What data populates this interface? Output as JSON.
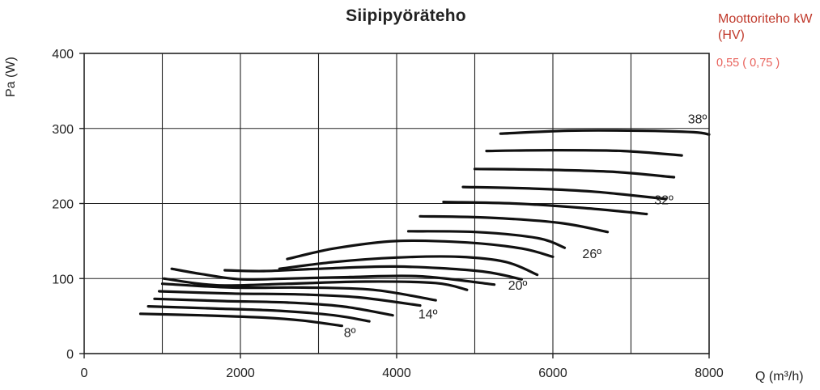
{
  "chart_data": {
    "type": "line",
    "title": "Siipipyöräteho",
    "xlabel": "Q (m³/h)",
    "ylabel": "Pa (W)",
    "xlim": [
      0,
      8000
    ],
    "ylim": [
      0,
      400
    ],
    "x_ticks": [
      0,
      2000,
      4000,
      6000,
      8000
    ],
    "y_ticks": [
      0,
      100,
      200,
      300,
      400
    ],
    "grid": true,
    "legend": {
      "title": "Moottoriteho kW (HV)",
      "entry": "0,55 ( 0,75 )",
      "color": "#e8605a",
      "title_color": "#c0392b",
      "placement": "top-right"
    },
    "angle_labels": [
      {
        "text": "8º",
        "x": 3400,
        "y": 22
      },
      {
        "text": "14º",
        "x": 4400,
        "y": 47
      },
      {
        "text": "20º",
        "x": 5550,
        "y": 85
      },
      {
        "text": "26º",
        "x": 6500,
        "y": 127
      },
      {
        "text": "32º",
        "x": 7420,
        "y": 199
      },
      {
        "text": "38º",
        "x": 7850,
        "y": 307
      }
    ],
    "series": [
      {
        "values": [
          [
            720,
            53
          ],
          [
            1500,
            51
          ],
          [
            2300,
            48
          ],
          [
            2800,
            44
          ],
          [
            3300,
            37
          ]
        ]
      },
      {
        "values": [
          [
            820,
            63
          ],
          [
            1700,
            60
          ],
          [
            2500,
            57
          ],
          [
            3200,
            51
          ],
          [
            3650,
            43
          ]
        ]
      },
      {
        "values": [
          [
            900,
            73
          ],
          [
            1800,
            70
          ],
          [
            2600,
            68
          ],
          [
            3300,
            63
          ],
          [
            3950,
            51
          ]
        ]
      },
      {
        "values": [
          [
            960,
            83
          ],
          [
            1900,
            80
          ],
          [
            2700,
            79
          ],
          [
            3500,
            75
          ],
          [
            4300,
            64
          ]
        ]
      },
      {
        "values": [
          [
            1000,
            93
          ],
          [
            1900,
            88
          ],
          [
            2800,
            88
          ],
          [
            3700,
            85
          ],
          [
            4500,
            71
          ]
        ]
      },
      {
        "values": [
          [
            1020,
            100
          ],
          [
            1700,
            91
          ],
          [
            2600,
            93
          ],
          [
            3600,
            96
          ],
          [
            4500,
            94
          ],
          [
            4900,
            85
          ]
        ]
      },
      {
        "values": [
          [
            1120,
            113
          ],
          [
            1500,
            106
          ],
          [
            2000,
            99
          ],
          [
            2600,
            100
          ],
          [
            3400,
            102
          ],
          [
            4300,
            103
          ],
          [
            5250,
            92
          ]
        ]
      },
      {
        "values": [
          [
            1800,
            111
          ],
          [
            2300,
            110
          ],
          [
            3000,
            113
          ],
          [
            4000,
            116
          ],
          [
            5050,
            110
          ],
          [
            5600,
            99
          ]
        ]
      },
      {
        "values": [
          [
            2500,
            113
          ],
          [
            3200,
            122
          ],
          [
            4000,
            128
          ],
          [
            4800,
            129
          ],
          [
            5400,
            122
          ],
          [
            5800,
            105
          ]
        ]
      },
      {
        "values": [
          [
            2600,
            126
          ],
          [
            3200,
            140
          ],
          [
            4000,
            150
          ],
          [
            4900,
            148
          ],
          [
            5600,
            140
          ],
          [
            6000,
            129
          ]
        ]
      },
      {
        "values": [
          [
            4150,
            163
          ],
          [
            5000,
            162
          ],
          [
            5800,
            154
          ],
          [
            6150,
            141
          ]
        ]
      },
      {
        "values": [
          [
            4300,
            183
          ],
          [
            5200,
            181
          ],
          [
            6100,
            174
          ],
          [
            6700,
            162
          ]
        ]
      },
      {
        "values": [
          [
            4600,
            202
          ],
          [
            5500,
            200
          ],
          [
            6400,
            194
          ],
          [
            7200,
            186
          ]
        ]
      },
      {
        "values": [
          [
            4850,
            222
          ],
          [
            5700,
            220
          ],
          [
            6500,
            216
          ],
          [
            7450,
            206
          ]
        ]
      },
      {
        "values": [
          [
            5000,
            246
          ],
          [
            5900,
            245
          ],
          [
            6800,
            242
          ],
          [
            7550,
            235
          ]
        ]
      },
      {
        "values": [
          [
            5150,
            270
          ],
          [
            6000,
            271
          ],
          [
            6900,
            270
          ],
          [
            7650,
            264
          ]
        ]
      },
      {
        "values": [
          [
            5330,
            293
          ],
          [
            6200,
            297
          ],
          [
            7100,
            297
          ],
          [
            7800,
            295
          ],
          [
            8000,
            292
          ]
        ]
      }
    ]
  }
}
